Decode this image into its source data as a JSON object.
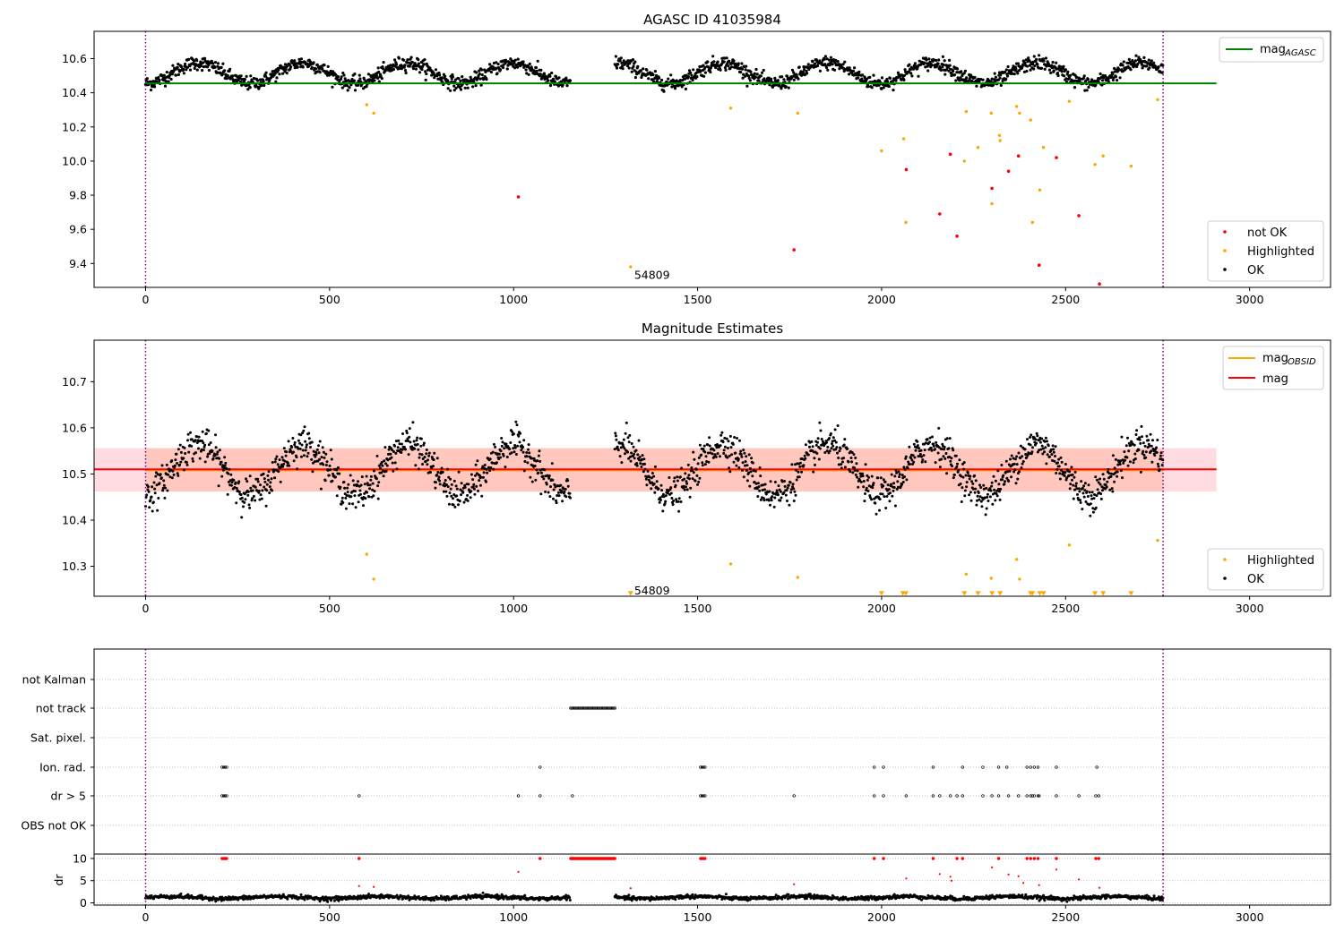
{
  "chart_data": [
    {
      "type": "scatter",
      "title": "AGASC ID 41035984",
      "xlim": [
        -140,
        3220
      ],
      "ylim": [
        9.26,
        10.76
      ],
      "xticks": [
        0,
        500,
        1000,
        1500,
        2000,
        2500,
        3000
      ],
      "yticks": [
        9.4,
        9.6,
        9.8,
        10.0,
        10.2,
        10.4,
        10.6
      ],
      "vlines": [
        0,
        2765
      ],
      "hline": {
        "name": "mag_AGASC",
        "y": 10.455,
        "x": [
          0,
          2910
        ],
        "color": "#008000"
      },
      "annotation": {
        "text": "54809",
        "x": 1318,
        "y": 9.33
      },
      "legend": [
        {
          "label": "not OK",
          "color": "#ff0000"
        },
        {
          "label": "Highlighted",
          "color": "#ffa500"
        },
        {
          "label": "OK",
          "color": "#000000"
        }
      ],
      "series": [
        {
          "name": "not OK",
          "color": "#ff0000",
          "points": [
            [
              1013,
              9.79
            ],
            [
              1762,
              9.48
            ],
            [
              2067,
              9.95
            ],
            [
              2158,
              9.69
            ],
            [
              2187,
              10.04
            ],
            [
              2205,
              9.56
            ],
            [
              2300,
              9.84
            ],
            [
              2345,
              9.94
            ],
            [
              2372,
              10.03
            ],
            [
              2428,
              9.39
            ],
            [
              2475,
              10.02
            ],
            [
              2536,
              9.68
            ],
            [
              2592,
              9.28
            ]
          ]
        },
        {
          "name": "Highlighted",
          "color": "#ffa500",
          "points": [
            [
              601,
              10.33
            ],
            [
              620,
              10.28
            ],
            [
              1318,
              9.38
            ],
            [
              1590,
              10.31
            ],
            [
              1772,
              10.28
            ],
            [
              2000,
              10.06
            ],
            [
              2060,
              10.13
            ],
            [
              2066,
              9.64
            ],
            [
              2225,
              10.0
            ],
            [
              2230,
              10.29
            ],
            [
              2262,
              10.08
            ],
            [
              2298,
              10.28
            ],
            [
              2300,
              9.75
            ],
            [
              2320,
              10.15
            ],
            [
              2322,
              10.12
            ],
            [
              2367,
              10.32
            ],
            [
              2375,
              10.28
            ],
            [
              2405,
              10.24
            ],
            [
              2410,
              9.64
            ],
            [
              2430,
              9.83
            ],
            [
              2440,
              10.08
            ],
            [
              2510,
              10.35
            ],
            [
              2580,
              9.98
            ],
            [
              2602,
              10.03
            ],
            [
              2678,
              9.97
            ],
            [
              2750,
              10.36
            ]
          ]
        },
        {
          "name": "OK",
          "color": "#000000",
          "model": {
            "x_ranges": [
              [
                0,
                1155
              ],
              [
                1275,
                2765
              ]
            ],
            "step": 1.45,
            "base": 10.515,
            "amplitude": 0.06,
            "period": 285,
            "phase_deg": 90,
            "noise": 0.045
          }
        }
      ]
    },
    {
      "type": "scatter",
      "title": "Magnitude Estimates",
      "xlim": [
        -140,
        3220
      ],
      "ylim": [
        10.235,
        10.79
      ],
      "xticks": [
        0,
        500,
        1000,
        1500,
        2000,
        2500,
        3000
      ],
      "yticks": [
        10.3,
        10.4,
        10.5,
        10.6,
        10.7
      ],
      "vlines": [
        0,
        2765
      ],
      "lines": [
        {
          "name": "mag_OBSID",
          "y": 10.508,
          "x": [
            0,
            2765
          ],
          "color": "#ffa500"
        },
        {
          "name": "mag",
          "y": 10.51,
          "x": [
            -140,
            2910
          ],
          "color": "#ff0000"
        }
      ],
      "bands": [
        {
          "y": [
            10.462,
            10.556
          ],
          "x": [
            -140,
            2910
          ],
          "color": "#ffc0cb",
          "opacity": 0.55
        },
        {
          "y": [
            10.462,
            10.556
          ],
          "x": [
            0,
            2765
          ],
          "color": "#ffa07a",
          "opacity": 0.35
        }
      ],
      "annotation": {
        "text": "54809",
        "x": 1318,
        "y": 10.247
      },
      "legend_lines": [
        {
          "label": "mag",
          "sub": "OBSID",
          "color": "#ffa500"
        },
        {
          "label": "mag",
          "sub": "",
          "color": "#ff0000"
        }
      ],
      "legend_points": [
        {
          "label": "Highlighted",
          "color": "#ffa500"
        },
        {
          "label": "OK",
          "color": "#000000"
        }
      ],
      "series": [
        {
          "name": "Highlighted",
          "color": "#ffa500",
          "points": [
            [
              601,
              10.326
            ],
            [
              620,
              10.272
            ],
            [
              1590,
              10.305
            ],
            [
              1772,
              10.276
            ],
            [
              2230,
              10.283
            ],
            [
              2298,
              10.274
            ],
            [
              2367,
              10.315
            ],
            [
              2375,
              10.272
            ],
            [
              2510,
              10.346
            ],
            [
              2750,
              10.356
            ]
          ]
        },
        {
          "name": "Highlighted (off-scale)",
          "color": "#ffa500",
          "marker": "triangle-down",
          "y": 10.24,
          "x": [
            1318,
            2000,
            2058,
            2066,
            2225,
            2262,
            2300,
            2322,
            2405,
            2410,
            2430,
            2440,
            2580,
            2602,
            2678
          ]
        },
        {
          "name": "OK",
          "color": "#000000",
          "model": {
            "x_ranges": [
              [
                0,
                1155
              ],
              [
                1275,
                2765
              ]
            ],
            "step": 1.45,
            "base": 10.51,
            "amplitude": 0.055,
            "period": 285,
            "phase_deg": 90,
            "noise": 0.04
          }
        }
      ]
    },
    {
      "type": "scatter",
      "title": "",
      "xlim": [
        -140,
        3220
      ],
      "categories": [
        "not Kalman",
        "not track",
        "Sat. pixel.",
        "Ion. rad.",
        "dr > 5",
        "OBS not OK"
      ],
      "vlines": [
        0,
        2765
      ],
      "series": [
        {
          "name": "not track",
          "x_range": [
            1155,
            1275
          ]
        },
        {
          "name": "Ion. rad.",
          "x": [
            208,
            212,
            216,
            220,
            1072,
            1508,
            1512,
            1516,
            1520,
            1980,
            2005,
            2140,
            2220,
            2275,
            2318,
            2340,
            2395,
            2405,
            2415,
            2425,
            2475,
            2585
          ]
        },
        {
          "name": "dr > 5",
          "x": [
            208,
            212,
            216,
            220,
            580,
            1013,
            1072,
            1160,
            1508,
            1512,
            1516,
            1520,
            1762,
            1980,
            2005,
            2067,
            2140,
            2158,
            2187,
            2205,
            2220,
            2275,
            2300,
            2318,
            2345,
            2372,
            2395,
            2405,
            2410,
            2415,
            2425,
            2428,
            2475,
            2536,
            2582,
            2590
          ]
        }
      ]
    },
    {
      "type": "scatter",
      "title": "",
      "ylabel": "dr",
      "xlim": [
        -140,
        3220
      ],
      "ylim": [
        -0.5,
        11
      ],
      "xticks": [
        0,
        500,
        1000,
        1500,
        2000,
        2500,
        3000
      ],
      "yticks": [
        0,
        5,
        10
      ],
      "vlines": [
        0,
        2765
      ],
      "series": [
        {
          "name": "dr > 5 (capped at 10)",
          "color": "#ff0000",
          "y": 10,
          "x": [
            208,
            212,
            216,
            220,
            580,
            1072,
            1508,
            1512,
            1516,
            1520,
            1980,
            2005,
            2140,
            2205,
            2220,
            2318,
            2395,
            2405,
            2415,
            2425,
            2475,
            2582,
            2590
          ],
          "x_range": [
            1155,
            1275
          ]
        },
        {
          "name": "large dr",
          "color": "#ff0000",
          "points": [
            [
              1013,
              7.0
            ],
            [
              580,
              3.8
            ],
            [
              620,
              3.6
            ],
            [
              1318,
              3.3
            ],
            [
              1762,
              4.2
            ],
            [
              2067,
              5.5
            ],
            [
              2158,
              6.5
            ],
            [
              2187,
              5.9
            ],
            [
              2190,
              5.0
            ],
            [
              2300,
              8.0
            ],
            [
              2345,
              6.4
            ],
            [
              2372,
              6.0
            ],
            [
              2385,
              4.5
            ],
            [
              2428,
              4.0
            ],
            [
              2475,
              7.5
            ],
            [
              2536,
              5.3
            ],
            [
              2592,
              3.4
            ]
          ]
        },
        {
          "name": "OK",
          "color": "#000000",
          "model": {
            "x_ranges": [
              [
                0,
                1155
              ],
              [
                1275,
                2765
              ]
            ],
            "step": 1.6,
            "base": 1.2,
            "amplitude": 0.25,
            "period": 285,
            "phase_deg": 0,
            "noise": 0.5
          }
        }
      ]
    }
  ]
}
